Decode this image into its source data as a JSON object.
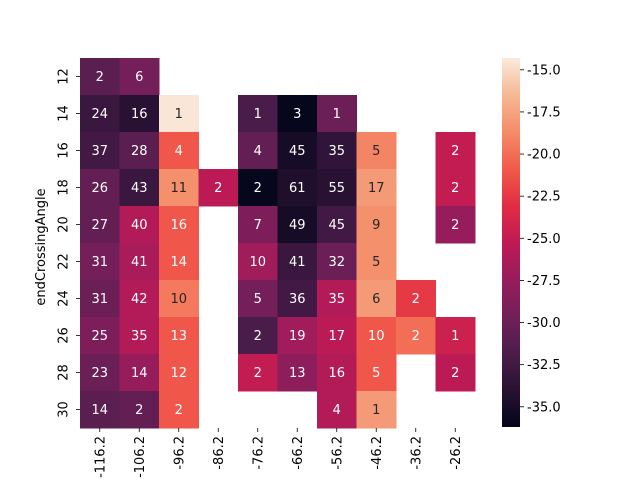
{
  "chart_data": {
    "type": "heatmap",
    "title": "",
    "xlabel": "",
    "ylabel": "endCrossingAngle",
    "x_categories": [
      "-116.2",
      "-106.2",
      "-96.2",
      "-86.2",
      "-76.2",
      "-66.2",
      "-56.2",
      "-46.2",
      "-36.2",
      "-26.2"
    ],
    "y_categories": [
      "12",
      "14",
      "16",
      "18",
      "20",
      "22",
      "24",
      "26",
      "28",
      "30"
    ],
    "annotations": [
      [
        2,
        6,
        null,
        null,
        null,
        null,
        null,
        null,
        null,
        null
      ],
      [
        24,
        16,
        1,
        null,
        1,
        3,
        1,
        null,
        null,
        null
      ],
      [
        37,
        28,
        4,
        null,
        4,
        45,
        35,
        5,
        null,
        2
      ],
      [
        26,
        43,
        11,
        2,
        2,
        61,
        55,
        17,
        null,
        2
      ],
      [
        27,
        40,
        16,
        null,
        7,
        49,
        45,
        9,
        null,
        2
      ],
      [
        31,
        41,
        14,
        null,
        10,
        41,
        32,
        5,
        null,
        null
      ],
      [
        31,
        42,
        10,
        null,
        5,
        36,
        35,
        6,
        2,
        null
      ],
      [
        25,
        35,
        13,
        null,
        2,
        19,
        17,
        10,
        2,
        1
      ],
      [
        23,
        14,
        12,
        null,
        2,
        13,
        16,
        5,
        null,
        2
      ],
      [
        14,
        2,
        2,
        null,
        null,
        null,
        4,
        1,
        null,
        null
      ]
    ],
    "color_values": [
      [
        -31.0,
        -29.5,
        null,
        null,
        null,
        null,
        null,
        null,
        null,
        null
      ],
      [
        -33.0,
        -34.0,
        -14.5,
        null,
        -32.0,
        -36.0,
        -30.0,
        null,
        null,
        null
      ],
      [
        -32.5,
        -31.0,
        -21.0,
        null,
        -30.5,
        -35.0,
        -33.5,
        -19.0,
        null,
        -25.0
      ],
      [
        -30.5,
        -33.0,
        -18.5,
        -25.5,
        -36.0,
        -34.5,
        -34.0,
        -18.0,
        null,
        -25.0
      ],
      [
        -30.5,
        -26.0,
        -21.0,
        null,
        -29.0,
        -35.0,
        -32.5,
        -18.5,
        null,
        -27.5
      ],
      [
        -29.5,
        -26.5,
        -21.0,
        null,
        -27.0,
        -33.0,
        -30.0,
        -18.5,
        null,
        null
      ],
      [
        -30.0,
        -26.0,
        -19.5,
        null,
        -29.5,
        -32.5,
        -26.0,
        -18.0,
        -22.5,
        null
      ],
      [
        -29.0,
        -26.0,
        -21.0,
        null,
        -32.0,
        -27.0,
        -25.5,
        -21.0,
        -20.0,
        -24.5
      ],
      [
        -30.0,
        -27.5,
        -21.0,
        null,
        -25.0,
        -28.0,
        -26.0,
        -21.0,
        null,
        -25.5
      ],
      [
        -31.0,
        -30.5,
        -21.0,
        null,
        null,
        null,
        -26.0,
        -18.0,
        null,
        null
      ]
    ],
    "colorbar": {
      "min": -36.2,
      "max": -14.3,
      "ticks": [
        "-15.0",
        "-17.5",
        "-20.0",
        "-22.5",
        "-25.0",
        "-27.5",
        "-30.0",
        "-32.5",
        "-35.0"
      ]
    },
    "colormap": "rocket",
    "grid": false
  }
}
